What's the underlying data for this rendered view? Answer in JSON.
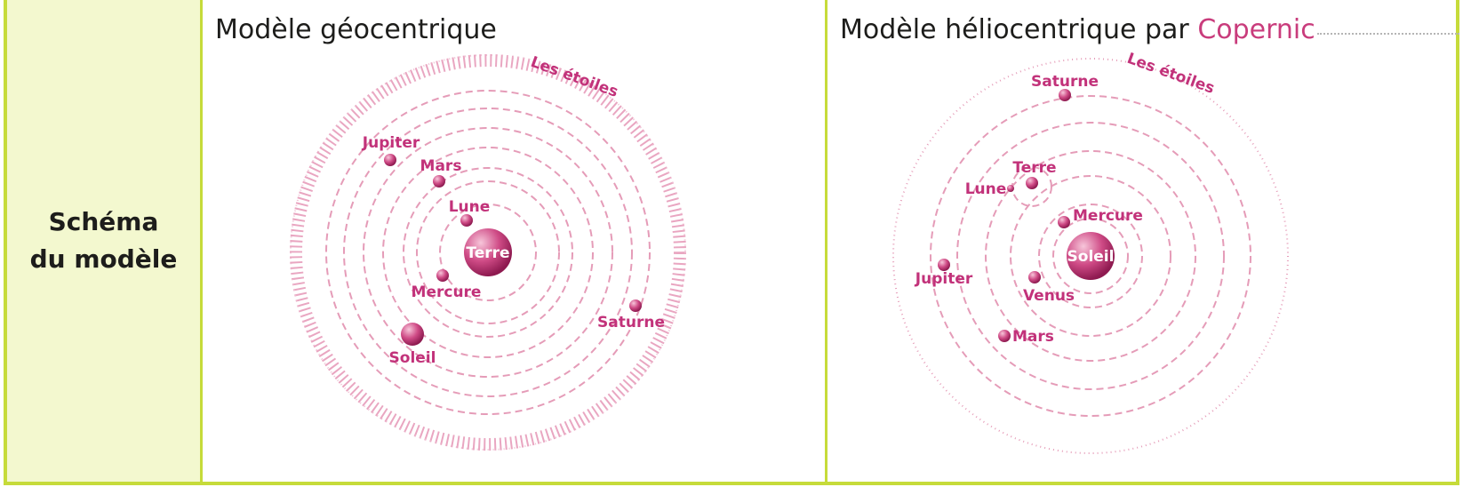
{
  "row_header": {
    "label": "Schéma\ndu modèle"
  },
  "geocentric": {
    "title": "Modèle géocentrique",
    "center_label": "Terre",
    "stars_label": "Les étoiles",
    "bodies": {
      "lune": "Lune",
      "mercure": "Mercure",
      "mars": "Mars",
      "jupiter": "Jupiter",
      "soleil": "Soleil",
      "saturne": "Saturne"
    }
  },
  "heliocentric": {
    "title_prefix": "Modèle héliocentrique par ",
    "title_accent": "Copernic",
    "center_label": "Soleil",
    "stars_label": "Les étoiles",
    "bodies": {
      "mercure": "Mercure",
      "venus": "Venus",
      "terre": "Terre",
      "lune": "Lune",
      "mars": "Mars",
      "jupiter": "Jupiter",
      "saturne": "Saturne"
    }
  },
  "colors": {
    "accent": "#c93c7c",
    "border": "#c6db3a",
    "header_bg": "#f3f8cf",
    "orbit": "#e59cb8"
  }
}
